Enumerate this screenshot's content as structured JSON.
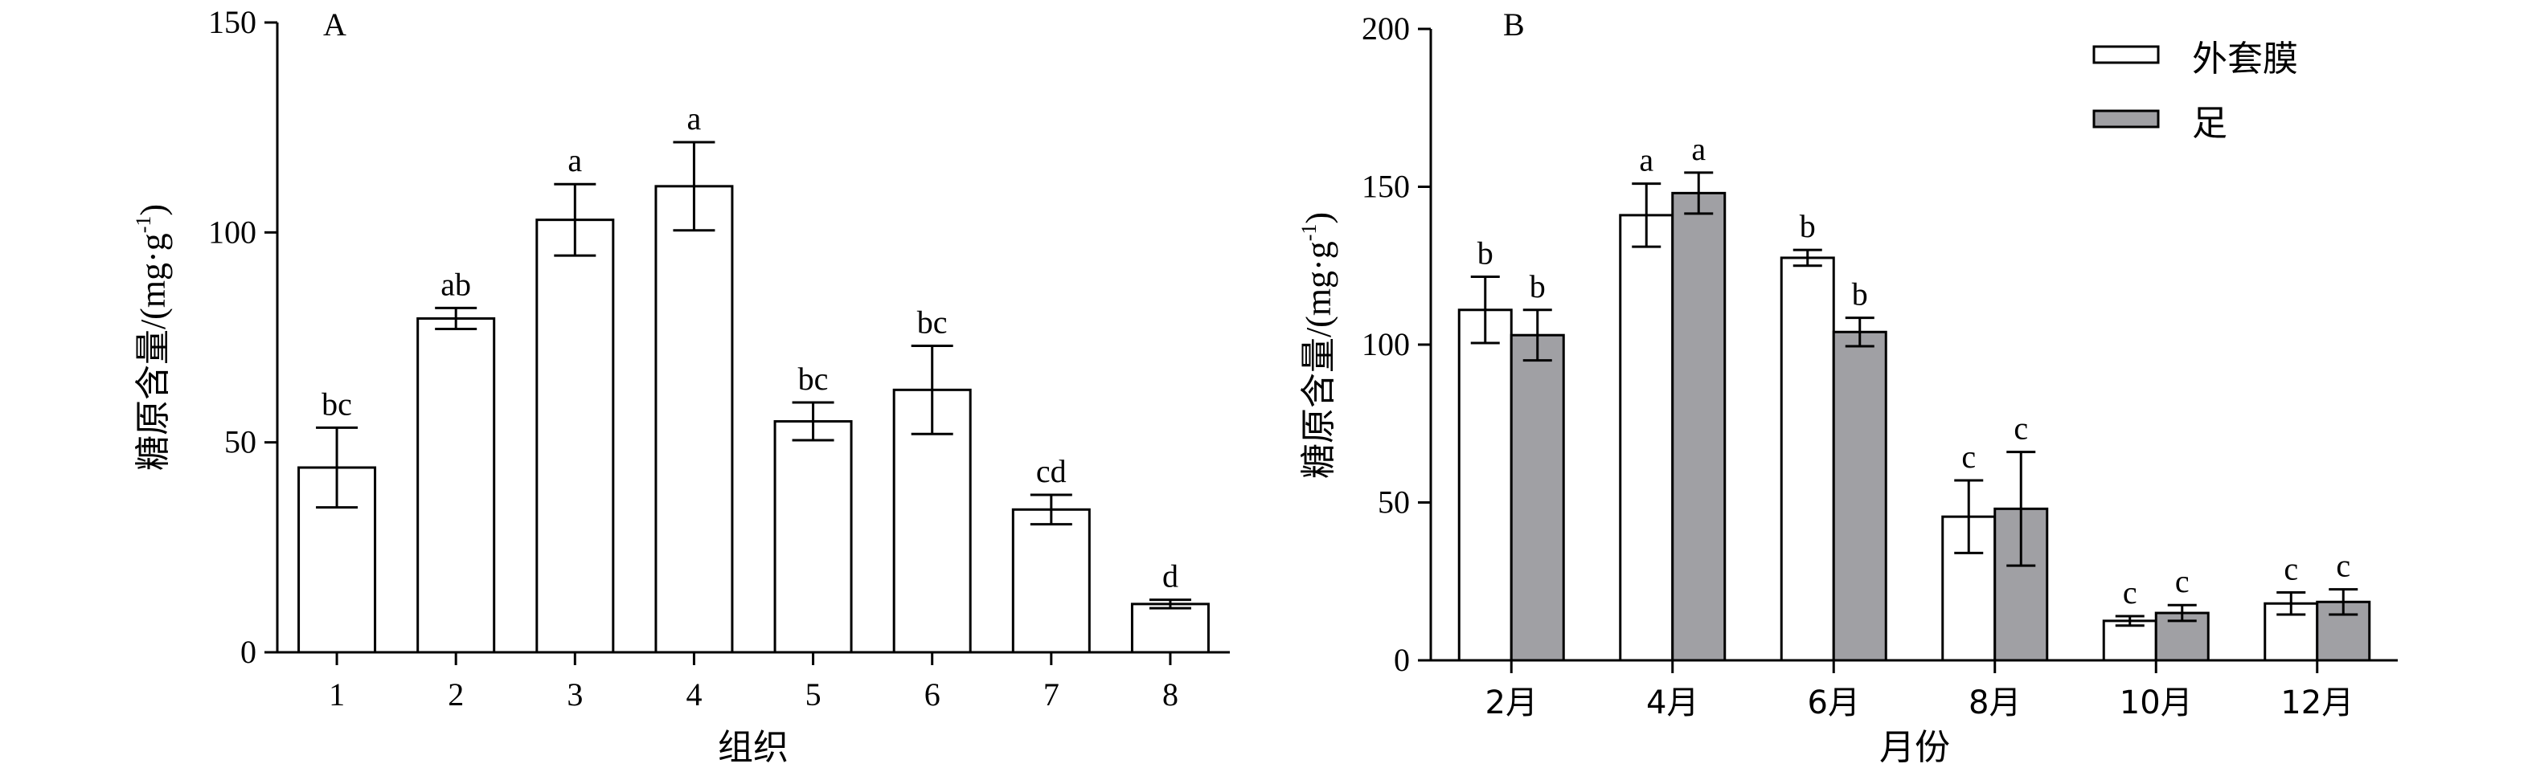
{
  "chart_data": [
    {
      "panel": "A",
      "type": "bar",
      "xlabel": "组织",
      "ylabel_main": "糖原含量",
      "ylabel_unit": "/(mg·g",
      "ylabel_sup": "-1",
      "ylabel_close": ")",
      "ylim": [
        0,
        150
      ],
      "yticks": [
        "0",
        "50",
        "100",
        "150"
      ],
      "categories": [
        "1",
        "2",
        "3",
        "4",
        "5",
        "6",
        "7",
        "8"
      ],
      "series": [
        {
          "color": "#ffffff",
          "values": [
            44,
            79.5,
            103,
            111,
            55,
            62.5,
            34,
            11.5
          ],
          "errors": [
            9.5,
            2.5,
            8.5,
            10.5,
            4.5,
            10.5,
            3.5,
            1
          ],
          "labels": [
            "bc",
            "ab",
            "a",
            "a",
            "bc",
            "bc",
            "cd",
            "d"
          ]
        }
      ],
      "grid": false
    },
    {
      "panel": "B",
      "type": "bar",
      "xlabel": "月份",
      "ylabel_main": "糖原含量",
      "ylabel_unit": "/(mg·g",
      "ylabel_sup": "-1",
      "ylabel_close": ")",
      "ylim": [
        0,
        200
      ],
      "yticks": [
        "0",
        "50",
        "100",
        "150",
        "200"
      ],
      "categories": [
        "2月",
        "4月",
        "6月",
        "8月",
        "10月",
        "12月"
      ],
      "series": [
        {
          "name": "外套膜",
          "color": "#ffffff",
          "values": [
            111,
            141,
            127.5,
            45.5,
            12.5,
            18
          ],
          "errors": [
            10.5,
            10,
            2.5,
            11.5,
            1.5,
            3.5
          ],
          "labels": [
            "b",
            "a",
            "b",
            "c",
            "c",
            "c"
          ]
        },
        {
          "name": "足",
          "color": "#a0a0a4",
          "values": [
            103,
            148,
            104,
            48,
            15,
            18.5
          ],
          "errors": [
            8,
            6.5,
            4.5,
            18,
            2.5,
            4
          ],
          "labels": [
            "b",
            "a",
            "b",
            "c",
            "c",
            "c"
          ]
        }
      ],
      "legend": "top-right",
      "grid": false
    }
  ]
}
